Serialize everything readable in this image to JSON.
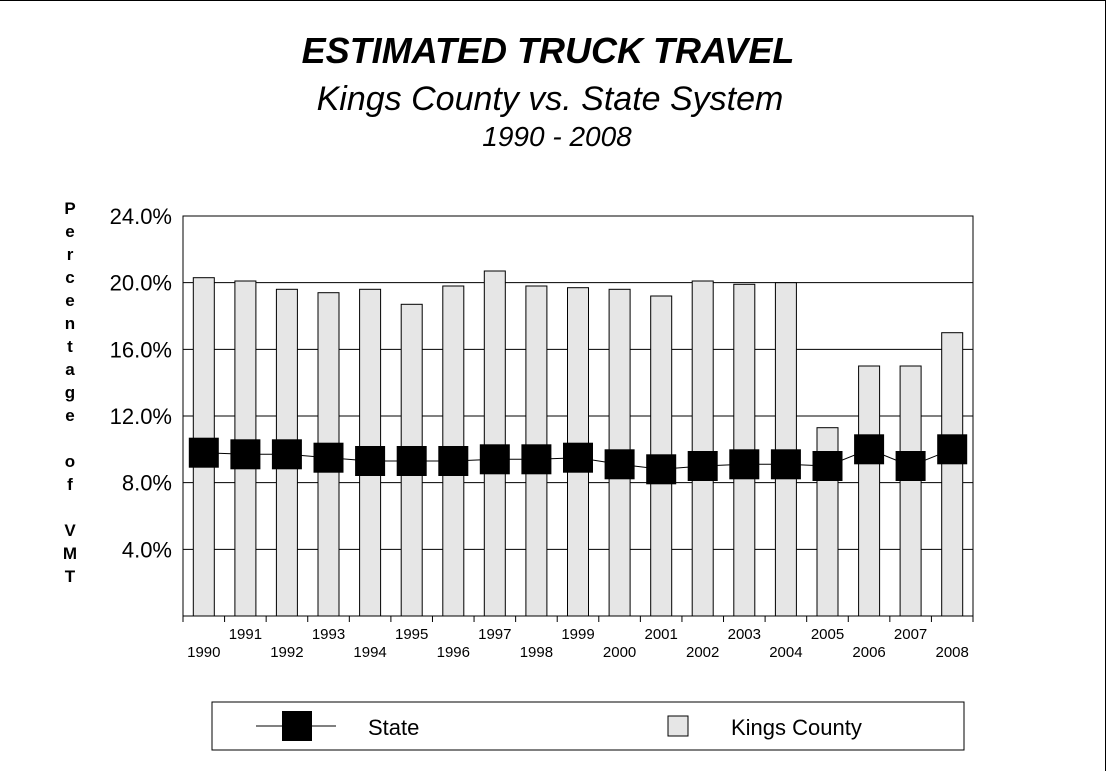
{
  "chart_data": {
    "type": "bar",
    "title": "ESTIMATED TRUCK TRAVEL",
    "subtitle": "Kings County vs. State System",
    "subtitle2": "1990 - 2008",
    "ylabel": "Percentage of VMT",
    "ylabel_letters": [
      "P",
      "e",
      "r",
      "c",
      "e",
      "n",
      "t",
      "a",
      "g",
      "e",
      "",
      "o",
      "f",
      "",
      "V",
      "M",
      "T"
    ],
    "yticks": [
      "24.0%",
      "20.0%",
      "16.0%",
      "12.0%",
      "8.0%",
      "4.0%"
    ],
    "ytick_values": [
      24,
      20,
      16,
      12,
      8,
      4
    ],
    "ylim": [
      0,
      24
    ],
    "grid": true,
    "legend_position": "bottom",
    "categories": [
      "1990",
      "1991",
      "1992",
      "1993",
      "1994",
      "1995",
      "1996",
      "1997",
      "1998",
      "1999",
      "2000",
      "2001",
      "2002",
      "2003",
      "2004",
      "2005",
      "2006",
      "2007",
      "2008"
    ],
    "series": [
      {
        "name": "Kings County",
        "type": "bar",
        "color": "#e6e6e6",
        "values": [
          20.3,
          20.1,
          19.6,
          19.4,
          19.6,
          18.7,
          19.8,
          20.7,
          19.8,
          19.7,
          19.6,
          19.2,
          20.1,
          19.9,
          20.0,
          11.3,
          15.0,
          15.0,
          17.0
        ]
      },
      {
        "name": "State",
        "type": "line",
        "color": "#000000",
        "values": [
          9.8,
          9.7,
          9.7,
          9.5,
          9.3,
          9.3,
          9.3,
          9.4,
          9.4,
          9.5,
          9.1,
          8.8,
          9.0,
          9.1,
          9.1,
          9.0,
          10.0,
          9.0,
          10.0
        ]
      }
    ]
  }
}
